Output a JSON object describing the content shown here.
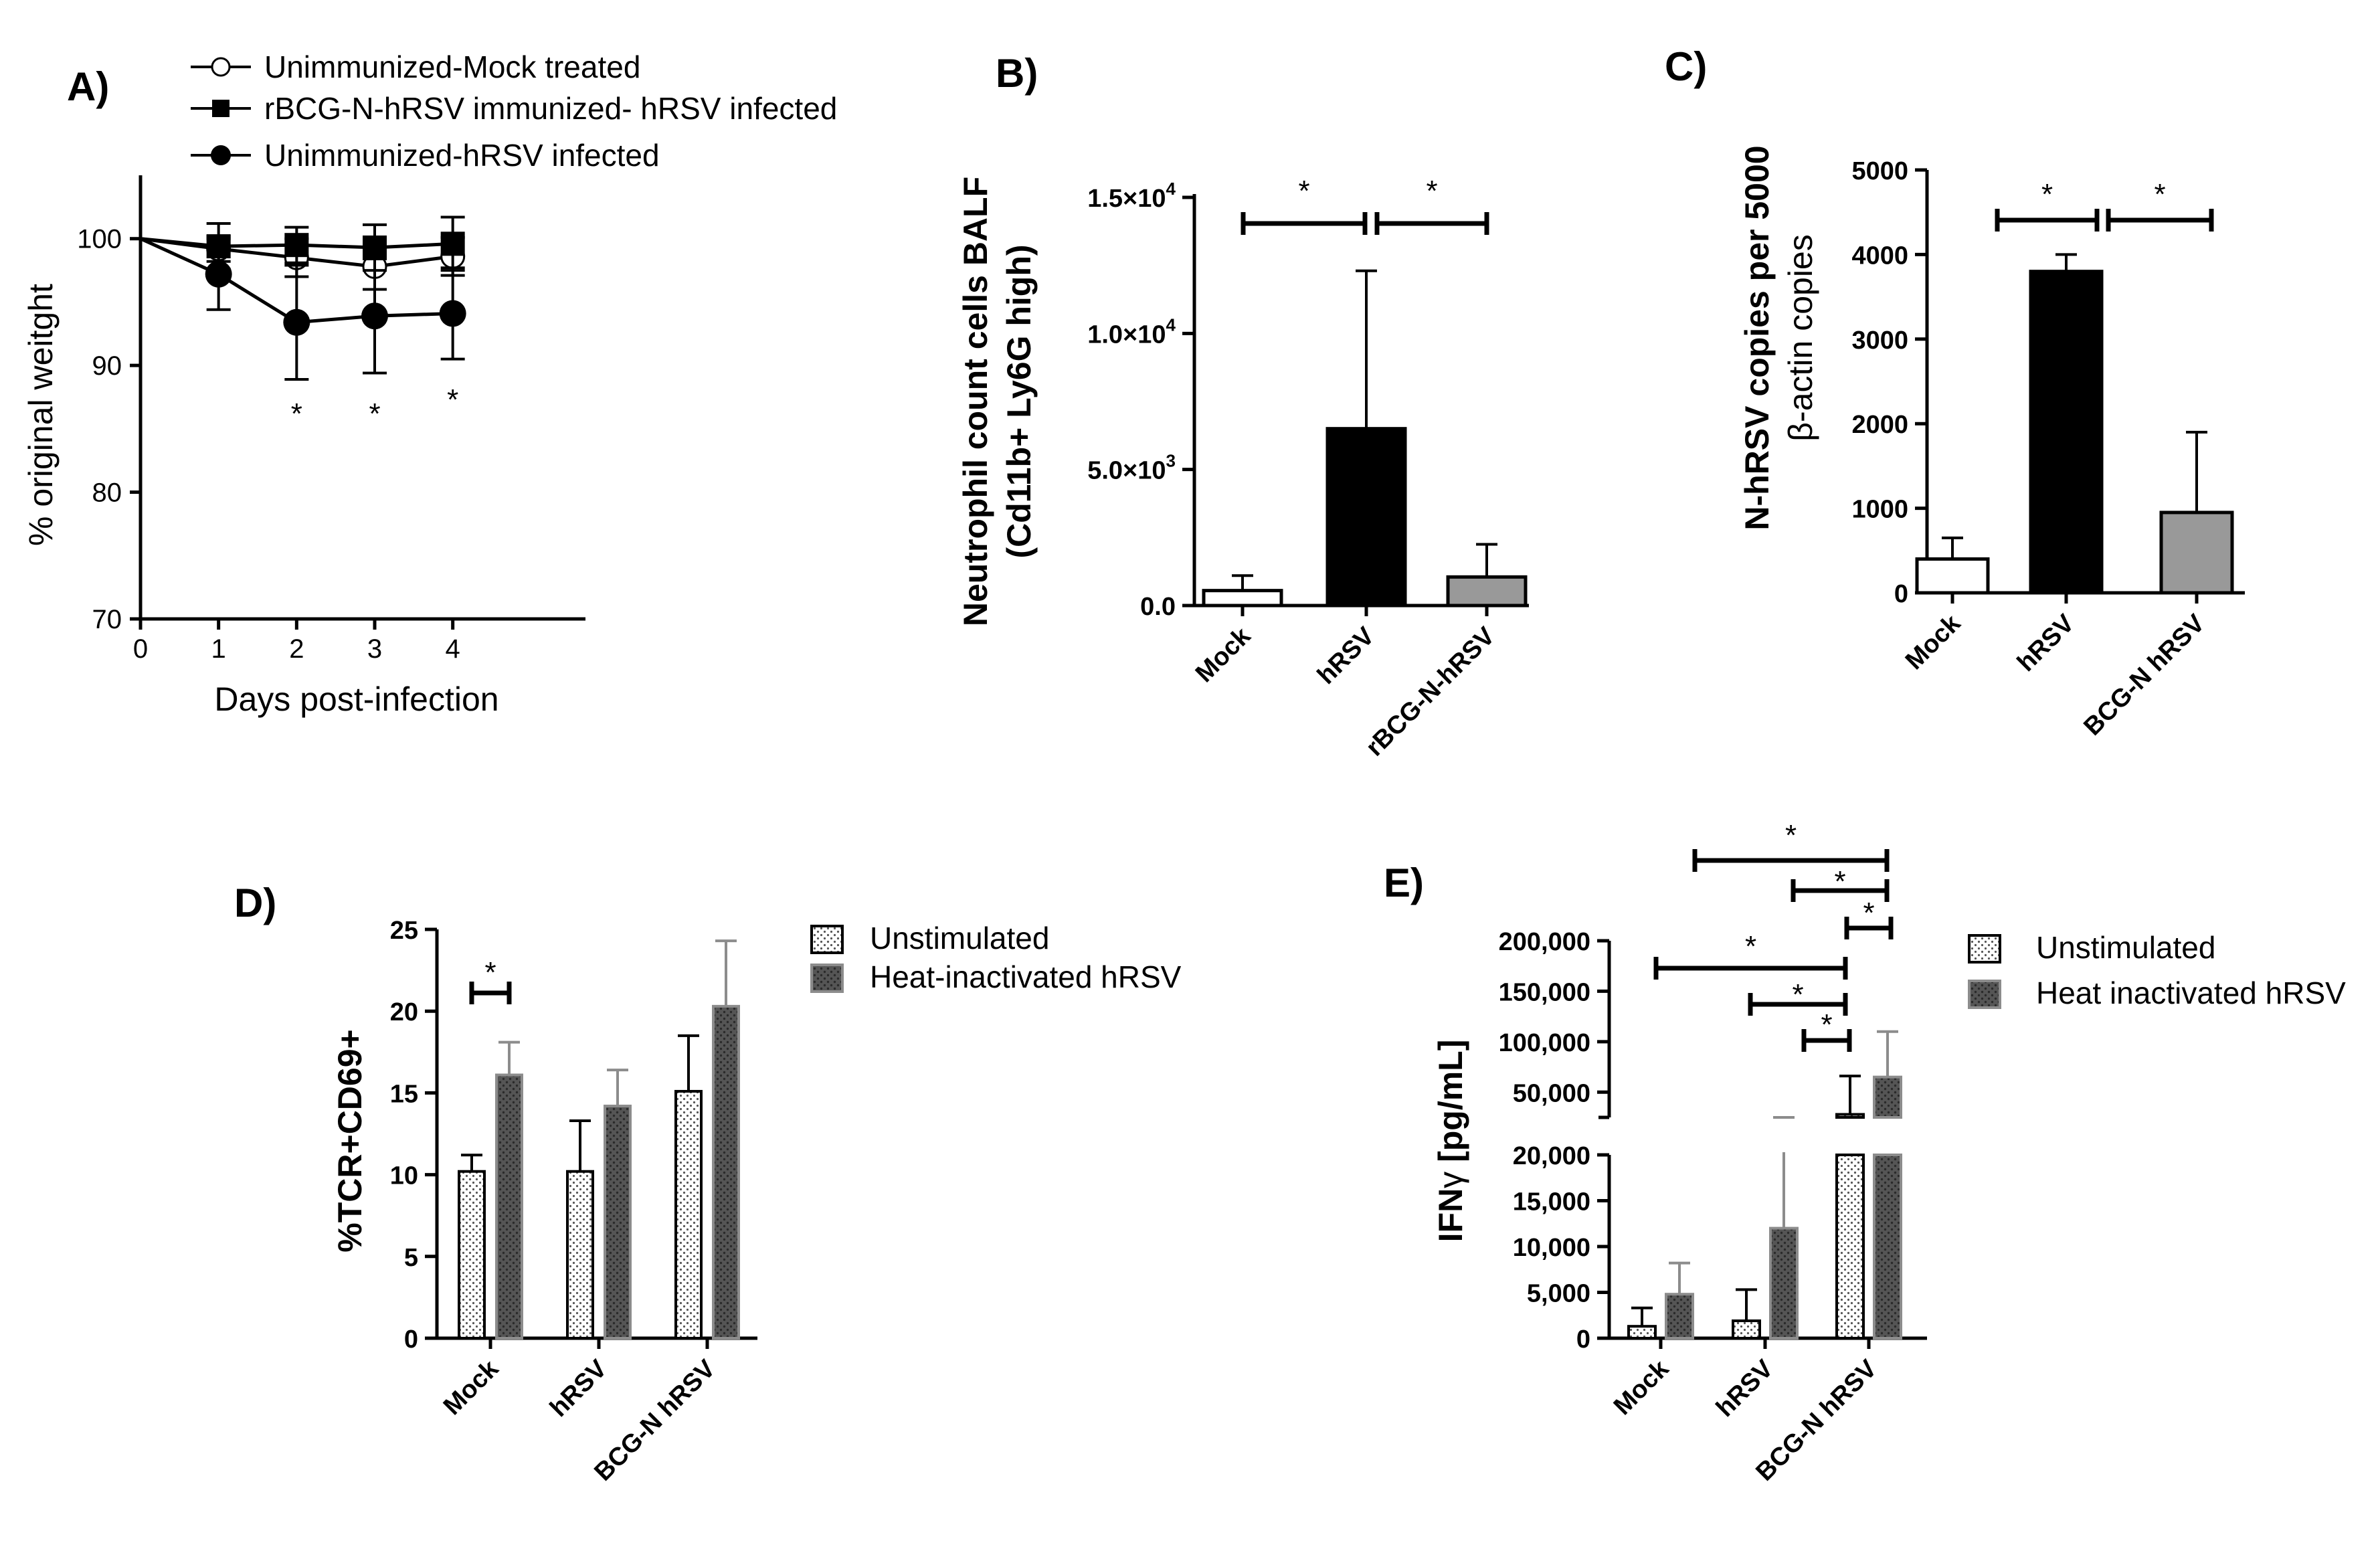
{
  "panels": {
    "A": {
      "letter": "A)",
      "chart_data": {
        "type": "line",
        "xlabel": "Days post-infection",
        "ylabel": "% original weitght",
        "x": [
          0,
          1,
          2,
          3,
          4
        ],
        "xticks": [
          "0",
          "1",
          "2",
          "3",
          "4"
        ],
        "yticks": [
          "70",
          "80",
          "90",
          "100"
        ],
        "ylim": [
          70,
          105
        ],
        "series": [
          {
            "name": "Unimmunized-Mock treated",
            "marker": "open-circle",
            "values": [
              100,
              99.2,
              98.5,
              97.8,
              98.6
            ],
            "err": [
              0,
              1.0,
              1.5,
              1.8,
              1.5
            ]
          },
          {
            "name": "rBCG-N-hRSV immunized- hRSV infected",
            "marker": "square",
            "values": [
              100,
              99.4,
              99.5,
              99.3,
              99.6
            ],
            "err": [
              0,
              1.8,
              1.4,
              1.8,
              2.1
            ]
          },
          {
            "name": "Unimmunized-hRSV infected",
            "marker": "filled-circle",
            "values": [
              100,
              97.2,
              93.4,
              93.9,
              94.1
            ],
            "err": [
              0,
              2.8,
              4.5,
              4.5,
              3.6
            ]
          }
        ],
        "annotations": [
          {
            "x": 2,
            "text": "*"
          },
          {
            "x": 3,
            "text": "*"
          },
          {
            "x": 4,
            "text": "*"
          }
        ]
      }
    },
    "B": {
      "letter": "B)",
      "chart_data": {
        "type": "bar",
        "ylabel_line1": "Neutrophil count cells BALF",
        "ylabel_line2": "(Cd11b+ Ly6G high)",
        "categories": [
          "Mock",
          "hRSV",
          "rBCG-N-hRSV"
        ],
        "values": [
          550,
          6500,
          1050
        ],
        "err": [
          550,
          5800,
          1200
        ],
        "colors": [
          "#ffffff",
          "#000000",
          "#999999"
        ],
        "ylim": [
          0,
          15000
        ],
        "yticks": [
          {
            "value": 0,
            "base": "0.0",
            "exp": ""
          },
          {
            "value": 5000,
            "base": "5.0×10",
            "exp": "3"
          },
          {
            "value": 10000,
            "base": "1.0×10",
            "exp": "4"
          },
          {
            "value": 15000,
            "base": "1.5×10",
            "exp": "4"
          }
        ],
        "significance": [
          {
            "from": 0,
            "to": 1,
            "text": "*"
          },
          {
            "from": 1,
            "to": 2,
            "text": "*"
          }
        ]
      }
    },
    "C": {
      "letter": "C)",
      "chart_data": {
        "type": "bar",
        "ylabel_line1": "N-hRSV copies per 5000",
        "ylabel_line2": "β-actin copies",
        "categories": [
          "Mock",
          "hRSV",
          "BCG-N hRSV"
        ],
        "values": [
          400,
          3800,
          950
        ],
        "err": [
          250,
          200,
          950
        ],
        "colors": [
          "#ffffff",
          "#000000",
          "#999999"
        ],
        "ylim": [
          0,
          5000
        ],
        "yticks": [
          "0",
          "1000",
          "2000",
          "3000",
          "4000",
          "5000"
        ],
        "significance": [
          {
            "from": 0,
            "to": 1,
            "text": "*"
          },
          {
            "from": 1,
            "to": 2,
            "text": "*"
          }
        ]
      }
    },
    "D": {
      "letter": "D)",
      "chart_data": {
        "type": "bar",
        "ylabel": "%TCR+CD69+",
        "categories": [
          "Mock",
          "hRSV",
          "BCG-N hRSV"
        ],
        "yticks": [
          "0",
          "5",
          "10",
          "15",
          "20",
          "25"
        ],
        "ylim": [
          0,
          25
        ],
        "series": [
          {
            "name": "Unstimulated",
            "values": [
              10.2,
              10.2,
              15.1
            ],
            "err": [
              1.0,
              3.1,
              3.4
            ]
          },
          {
            "name": "Heat-inactivated hRSV",
            "values": [
              16.1,
              14.2,
              20.3
            ],
            "err": [
              2.0,
              2.2,
              4.0
            ]
          }
        ],
        "significance": [
          {
            "category": 0,
            "text": "*"
          }
        ]
      }
    },
    "E": {
      "letter": "E)",
      "chart_data": {
        "type": "bar",
        "ylabel_prefix": "IFN",
        "ylabel_greek": "γ",
        "ylabel_suffix": " [pg/mL]",
        "categories": [
          "Mock",
          "hRSV",
          "BCG-N hRSV"
        ],
        "axis_break": [
          20000,
          25000
        ],
        "ylim_lower": [
          0,
          20000
        ],
        "ylim_upper": [
          25000,
          200000
        ],
        "yticks_lower": [
          "0",
          "5,000",
          "10,000",
          "15,000",
          "20,000"
        ],
        "yticks_upper": [
          "50,000",
          "100,000",
          "150,000",
          "200,000"
        ],
        "series": [
          {
            "name": "Unstimulated",
            "values": [
              1300,
              1900,
              28000
            ],
            "err": [
              2000,
              3400,
              38000
            ]
          },
          {
            "name": "Heat inactivated hRSV",
            "values": [
              4800,
              12000,
              65000
            ],
            "err": [
              3400,
              13000,
              45000
            ]
          }
        ],
        "significance": [
          {
            "text": "*"
          },
          {
            "text": "*"
          },
          {
            "text": "*"
          },
          {
            "text": "*"
          },
          {
            "text": "*"
          },
          {
            "text": "*"
          }
        ]
      }
    }
  }
}
